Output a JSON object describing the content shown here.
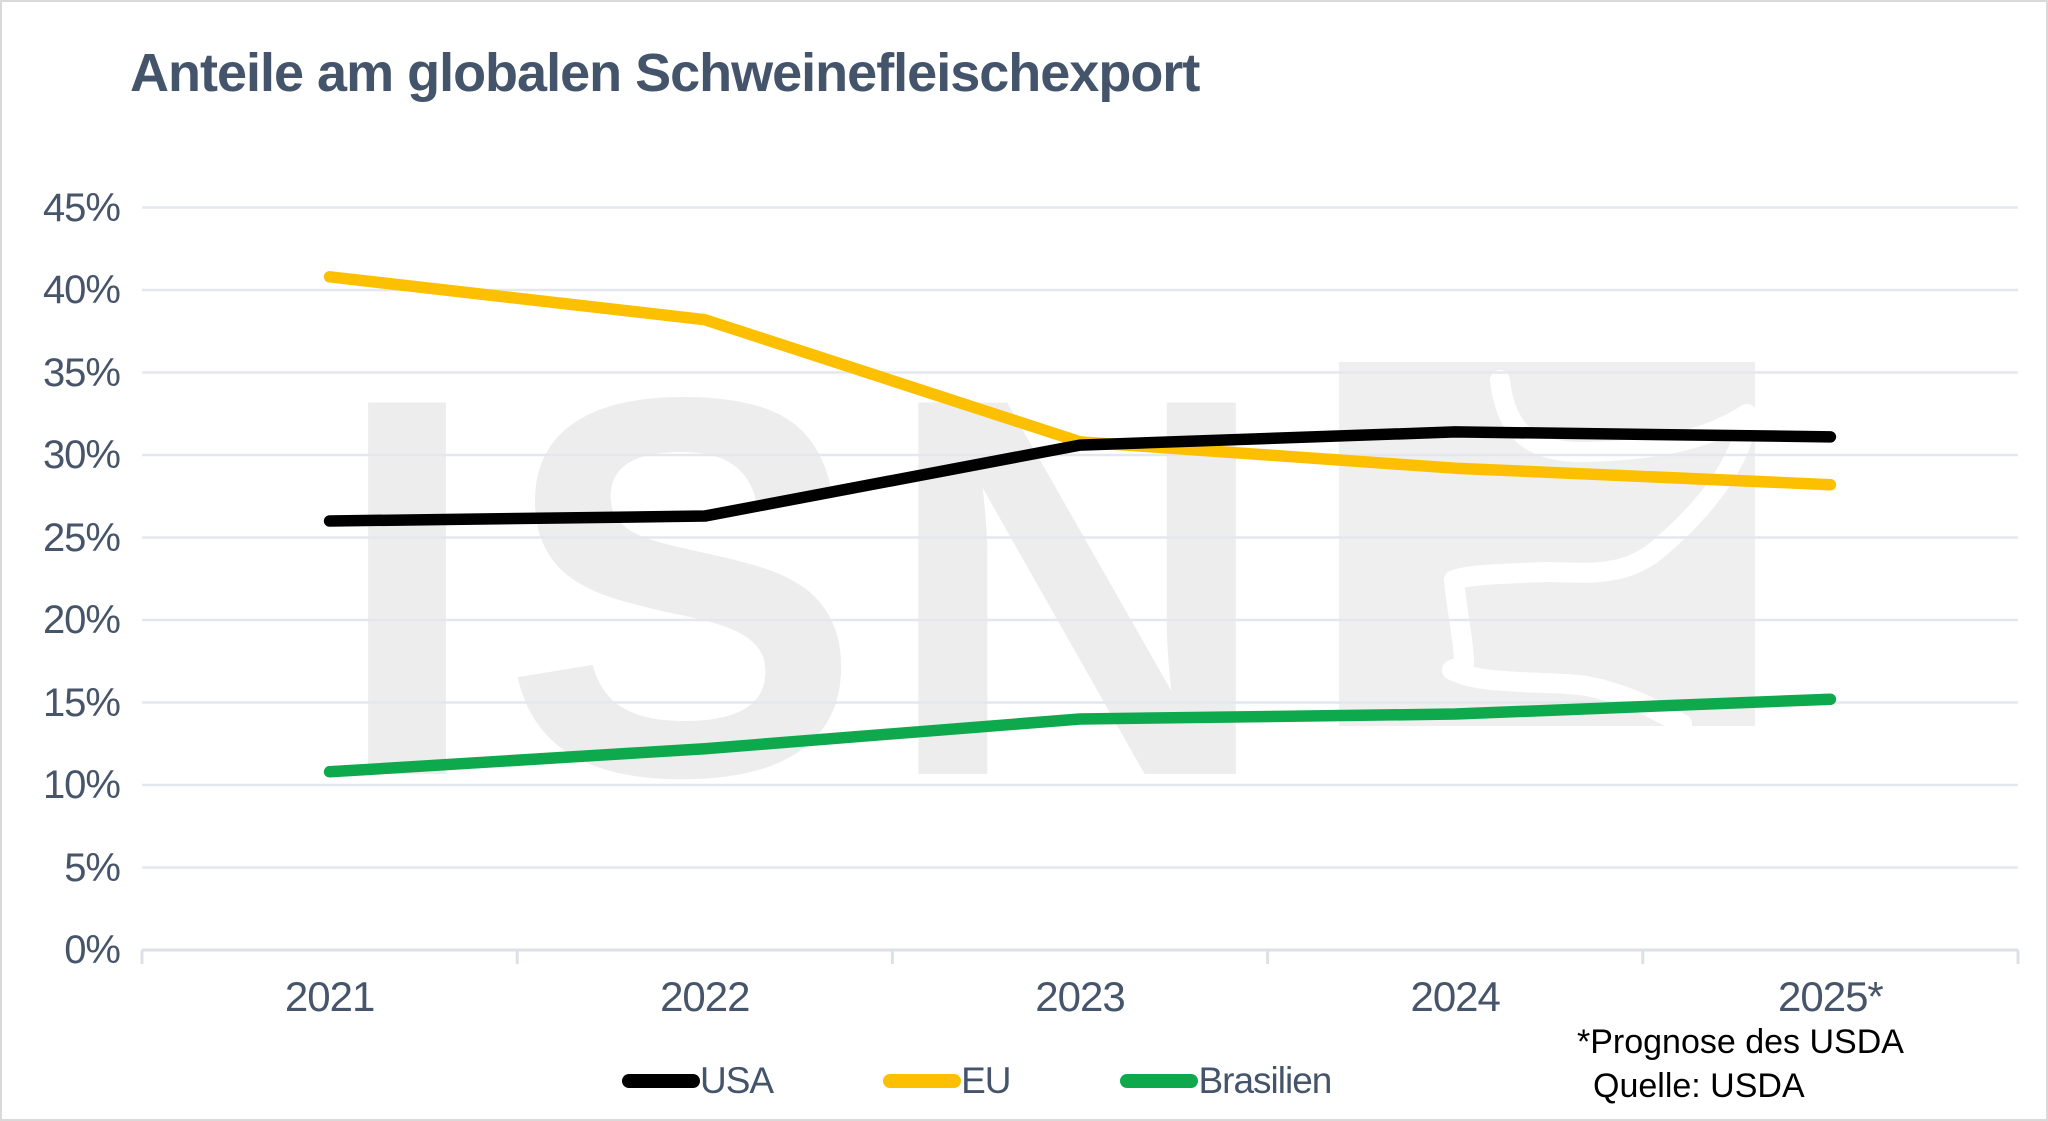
{
  "title": "Anteile am globalen Schweinefleischexport",
  "watermark": {
    "text": "ISN",
    "logo": "pig-outline-logo"
  },
  "footnote": {
    "line1": "*Prognose des USDA",
    "line2": "Quelle: USDA"
  },
  "colors": {
    "title_text": "#44546A",
    "axis_text": "#47556B",
    "gridline": "#E3E7EE",
    "axis_line": "#DCE0E8",
    "watermark_gray": "#EDEDED",
    "watermark_box": "#EFEFEF",
    "pig_stroke": "#FFFFFF",
    "usa": "#000000",
    "eu": "#FCC000",
    "brasilien": "#0FA94D"
  },
  "chart_data": {
    "type": "line",
    "title": "Anteile am globalen Schweinefleischexport",
    "categories": [
      "2021",
      "2022",
      "2023",
      "2024",
      "2025*"
    ],
    "series": [
      {
        "name": "USA",
        "color": "#000000",
        "values": [
          26.0,
          26.3,
          30.6,
          31.4,
          31.1
        ]
      },
      {
        "name": "EU",
        "color": "#FCC000",
        "values": [
          40.8,
          38.2,
          30.8,
          29.2,
          28.2
        ]
      },
      {
        "name": "Brasilien",
        "color": "#0FA94D",
        "values": [
          10.8,
          12.2,
          14.0,
          14.3,
          15.2
        ]
      }
    ],
    "xlabel": "",
    "ylabel": "",
    "y_ticks": [
      "0%",
      "5%",
      "10%",
      "15%",
      "20%",
      "25%",
      "30%",
      "35%",
      "40%",
      "45%"
    ],
    "ylim": [
      0,
      45
    ],
    "y_step": 5,
    "grid": true,
    "legend_position": "bottom",
    "annotations": [
      "*Prognose des USDA",
      "Quelle: USDA"
    ]
  }
}
